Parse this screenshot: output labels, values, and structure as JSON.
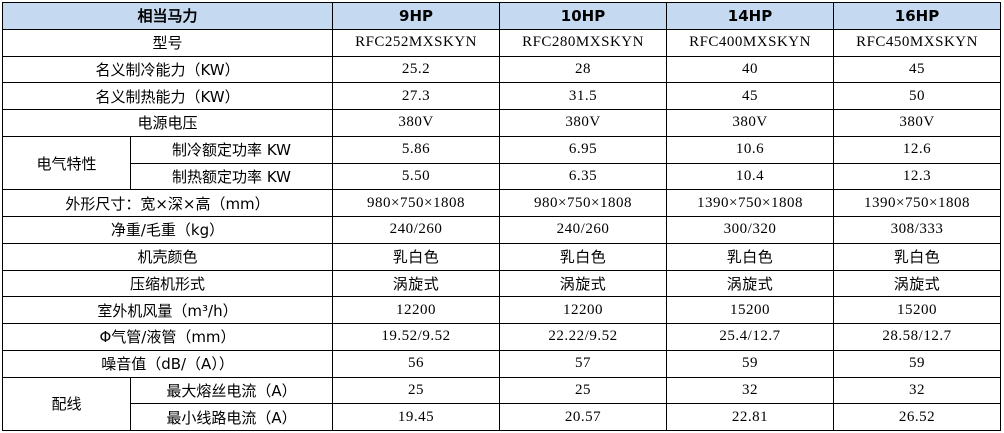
{
  "header": {
    "label": "相当马力",
    "columns": [
      "9HP",
      "10HP",
      "14HP",
      "16HP"
    ]
  },
  "rows": [
    {
      "label": "型号",
      "values": [
        "RFC252MXSKYN",
        "RFC280MXSKYN",
        "RFC400MXSKYN",
        "RFC450MXSKYN"
      ]
    },
    {
      "label": "名义制冷能力（KW）",
      "values": [
        "25.2",
        "28",
        "40",
        "45"
      ]
    },
    {
      "label": "名义制热能力（KW）",
      "values": [
        "27.3",
        "31.5",
        "45",
        "50"
      ]
    },
    {
      "label": "电源电压",
      "values": [
        "380V",
        "380V",
        "380V",
        "380V"
      ]
    },
    {
      "label": "电气特性",
      "rows": [
        {
          "label": "制冷额定功率 KW",
          "values": [
            "5.86",
            "6.95",
            "10.6",
            "12.6"
          ]
        },
        {
          "label": "制热额定功率 KW",
          "values": [
            "5.50",
            "6.35",
            "10.4",
            "12.3"
          ]
        }
      ]
    },
    {
      "label": "外形尺寸：宽×深×高（mm）",
      "values": [
        "980×750×1808",
        "980×750×1808",
        "1390×750×1808",
        "1390×750×1808"
      ]
    },
    {
      "label": "净重/毛重（kg）",
      "values": [
        "240/260",
        "240/260",
        "300/320",
        "308/333"
      ]
    },
    {
      "label": "机壳颜色",
      "values": [
        "乳白色",
        "乳白色",
        "乳白色",
        "乳白色"
      ]
    },
    {
      "label": "压缩机形式",
      "values": [
        "涡旋式",
        "涡旋式",
        "涡旋式",
        "涡旋式"
      ]
    },
    {
      "label": "室外机风量（m³/h）",
      "values": [
        "12200",
        "12200",
        "15200",
        "15200"
      ]
    },
    {
      "label": "Φ气管/液管（mm）",
      "values": [
        "19.52/9.52",
        "22.22/9.52",
        "25.4/12.7",
        "28.58/12.7"
      ]
    },
    {
      "label": "噪音值（dB/（A））",
      "values": [
        "56",
        "57",
        "59",
        "59"
      ]
    },
    {
      "label": "配线",
      "rows": [
        {
          "label": "最大熔丝电流（A）",
          "values": [
            "25",
            "25",
            "32",
            "32"
          ]
        },
        {
          "label": "最小线路电流（A）",
          "values": [
            "19.45",
            "20.57",
            "22.81",
            "26.52"
          ]
        }
      ]
    }
  ]
}
